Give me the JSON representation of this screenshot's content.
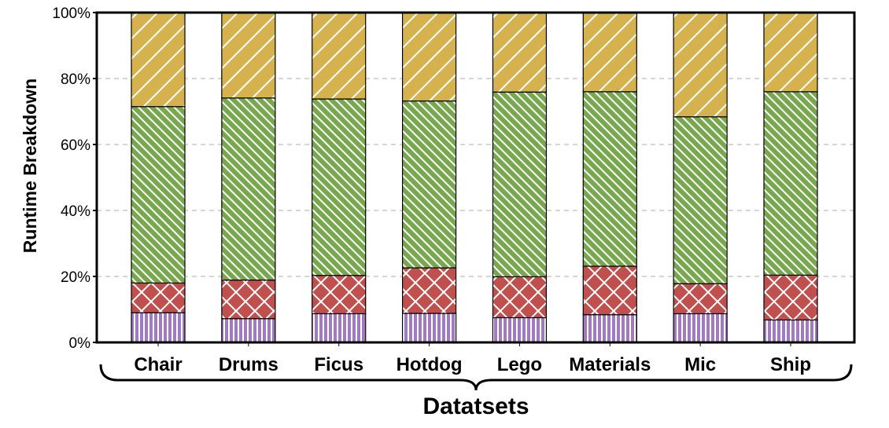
{
  "chart_data": {
    "type": "bar",
    "stacked": true,
    "categories": [
      "Chair",
      "Drums",
      "Ficus",
      "Hotdog",
      "Lego",
      "Materials",
      "Mic",
      "Ship"
    ],
    "series": [
      {
        "values": [
          9.0,
          7.2,
          8.7,
          8.8,
          7.5,
          8.4,
          8.7,
          6.8
        ],
        "color": "#a07cbf",
        "pattern": "vertical"
      },
      {
        "values": [
          9.0,
          11.7,
          11.6,
          13.8,
          12.4,
          14.7,
          9.1,
          13.6
        ],
        "color": "#c0504d",
        "pattern": "crosshatch"
      },
      {
        "values": [
          53.5,
          55.2,
          53.5,
          50.6,
          56.0,
          52.9,
          50.6,
          55.6
        ],
        "color": "#78a84e",
        "pattern": "backslash"
      },
      {
        "values": [
          28.5,
          25.9,
          26.2,
          26.8,
          24.1,
          24.0,
          31.6,
          24.0
        ],
        "color": "#d6b24f",
        "pattern": "slash"
      }
    ],
    "yticks": [
      "0%",
      "20%",
      "40%",
      "60%",
      "80%",
      "100%"
    ],
    "ylim": [
      0,
      100
    ],
    "ylabel": "Runtime Breakdown",
    "xlabel": "Datatsets",
    "grid": "horizontal dashed"
  }
}
